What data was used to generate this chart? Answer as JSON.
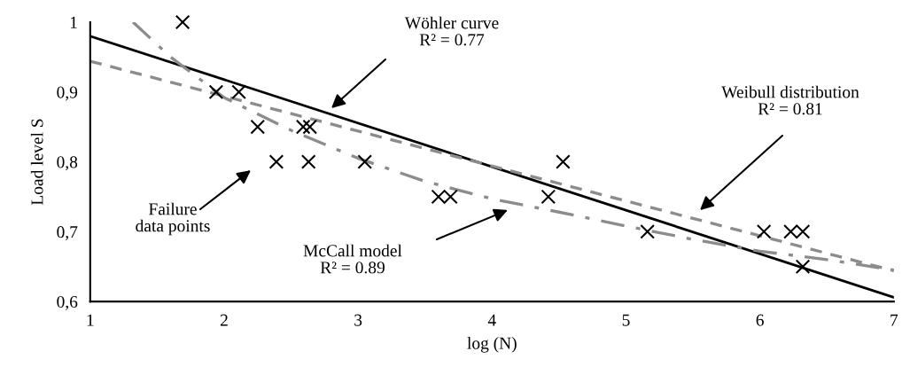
{
  "chart_data": {
    "type": "scatter",
    "xlabel": "log (N)",
    "ylabel": "Load level S",
    "xlim": [
      1,
      7
    ],
    "ylim": [
      0.6,
      1
    ],
    "xticks": [
      1,
      2,
      3,
      4,
      5,
      6,
      7
    ],
    "yticks": [
      {
        "value": 0.6,
        "label": "0,6"
      },
      {
        "value": 0.7,
        "label": "0,7"
      },
      {
        "value": 0.8,
        "label": "0,8"
      },
      {
        "value": 0.9,
        "label": "0,9"
      },
      1
    ],
    "grid": false,
    "legend": false,
    "series": [
      {
        "color": "#000000",
        "marker": "cross",
        "x": [
          1.69,
          1.94,
          2.11,
          2.25,
          2.59,
          2.64,
          2.39,
          2.63,
          3.05,
          3.6,
          3.69,
          4.53,
          4.42,
          5.16,
          6.03,
          6.23,
          6.32,
          6.32
        ],
        "values": [
          1.0,
          0.9,
          0.9,
          0.85,
          0.85,
          0.85,
          0.8,
          0.8,
          0.8,
          0.75,
          0.75,
          0.8,
          0.75,
          0.7,
          0.7,
          0.7,
          0.7,
          0.65
        ]
      },
      {
        "type": "line",
        "color": "#000000",
        "line_style": "solid",
        "x": [
          1,
          7
        ],
        "values": [
          0.98,
          0.606
        ]
      },
      {
        "type": "line",
        "color": "#8c8c8c",
        "line_style": "dashed",
        "x": [
          1,
          7
        ],
        "values": [
          0.944,
          0.644
        ]
      },
      {
        "type": "line",
        "color": "#8c8c8c",
        "line_style": "dashdot",
        "x": [
          1.32,
          1.6,
          2.0,
          2.5,
          3.0,
          3.5,
          4.0,
          4.5,
          5.0,
          5.5,
          6.0,
          6.5,
          7.0
        ],
        "values": [
          1.0,
          0.95,
          0.892,
          0.845,
          0.805,
          0.772,
          0.747,
          0.728,
          0.708,
          0.689,
          0.672,
          0.66,
          0.645
        ]
      }
    ],
    "annotations": [
      "Wöhler curve\nR² = 0.77",
      "Weibull distribution\nR² = 0.81",
      "McCall model\nR² = 0.89",
      "Failure\ndata points"
    ]
  }
}
